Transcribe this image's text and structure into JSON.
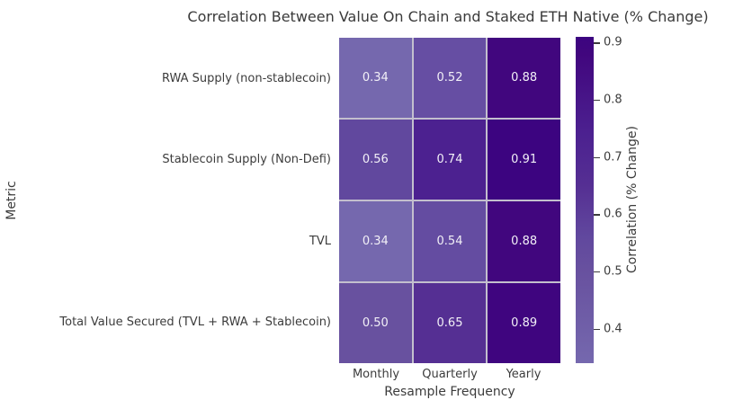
{
  "figure": {
    "background": "#ffffff",
    "text_color": "#3c3c3c"
  },
  "chart_data": {
    "type": "heatmap",
    "title": "Correlation Between Value On Chain and Staked ETH Native (% Change)",
    "xlabel": "Resample Frequency",
    "ylabel": "Metric",
    "x_categories": [
      "Monthly",
      "Quarterly",
      "Yearly"
    ],
    "y_categories": [
      "RWA Supply (non-stablecoin)",
      "Stablecoin Supply (Non-Defi)",
      "TVL",
      "Total Value Secured (TVL + RWA + Stablecoin)"
    ],
    "values": [
      [
        0.34,
        0.52,
        0.88
      ],
      [
        0.56,
        0.74,
        0.91
      ],
      [
        0.34,
        0.54,
        0.88
      ],
      [
        0.5,
        0.65,
        0.89
      ]
    ],
    "cell_colors": [
      [
        "#7568ae",
        "#664ea3",
        "#41067e"
      ],
      [
        "#61489e",
        "#4c2190",
        "#3c0480"
      ],
      [
        "#7568ae",
        "#644ca1",
        "#41067e"
      ],
      [
        "#68519f",
        "#552f93",
        "#3f057f"
      ]
    ],
    "cell_text_color": "#f2f0f7",
    "grid_line_color": "#c3bfce",
    "grid": false,
    "legend_position": "colorbar-right",
    "colorbar": {
      "label": "Correlation (% Change)",
      "vmin": 0.34,
      "vmax": 0.91,
      "ticks": [
        0.9,
        0.8,
        0.7,
        0.6,
        0.5,
        0.4
      ],
      "gradient_stops": [
        {
          "value": 0.34,
          "color": "#7568ae"
        },
        {
          "value": 0.5,
          "color": "#68519f"
        },
        {
          "value": 0.56,
          "color": "#61489e"
        },
        {
          "value": 0.65,
          "color": "#552f93"
        },
        {
          "value": 0.74,
          "color": "#4c2190"
        },
        {
          "value": 0.88,
          "color": "#41067e"
        },
        {
          "value": 0.91,
          "color": "#3c0480"
        }
      ]
    }
  }
}
